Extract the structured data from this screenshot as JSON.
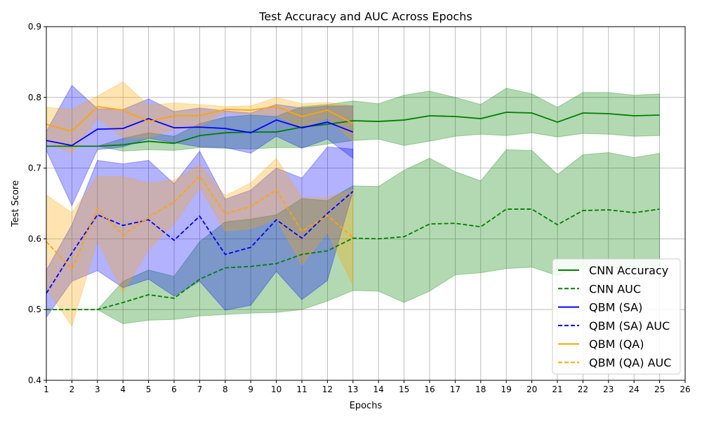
{
  "chart_data": {
    "type": "line",
    "title": "Test Accuracy and AUC Across Epochs",
    "xlabel": "Epochs",
    "ylabel": "Test Score",
    "xlim": [
      1,
      26
    ],
    "ylim": [
      0.4,
      0.9
    ],
    "xticks": [
      1,
      2,
      3,
      4,
      5,
      6,
      7,
      8,
      9,
      10,
      11,
      12,
      13,
      14,
      15,
      16,
      17,
      18,
      19,
      20,
      21,
      22,
      23,
      24,
      25,
      26
    ],
    "yticks": [
      0.4,
      0.5,
      0.6,
      0.7,
      0.8,
      0.9
    ],
    "ytick_labels": [
      "0.4",
      "0.5",
      "0.6",
      "0.7",
      "0.8",
      "0.9"
    ],
    "grid": true,
    "legend_position": "lower-right",
    "series": [
      {
        "name": "CNN Accuracy",
        "color": "#008000",
        "dash": false,
        "x": [
          1,
          2,
          3,
          4,
          5,
          6,
          7,
          8,
          9,
          10,
          11,
          12,
          13,
          14,
          15,
          16,
          17,
          18,
          19,
          20,
          21,
          22,
          23,
          24,
          25
        ],
        "values": [
          0.731,
          0.731,
          0.731,
          0.733,
          0.738,
          0.735,
          0.746,
          0.75,
          0.751,
          0.751,
          0.758,
          0.762,
          0.767,
          0.766,
          0.768,
          0.774,
          0.773,
          0.77,
          0.779,
          0.778,
          0.765,
          0.778,
          0.777,
          0.774,
          0.775
        ],
        "band_low": [
          0.731,
          0.731,
          0.731,
          0.724,
          0.726,
          0.725,
          0.729,
          0.728,
          0.727,
          0.729,
          0.729,
          0.734,
          0.739,
          0.741,
          0.732,
          0.738,
          0.745,
          0.748,
          0.746,
          0.75,
          0.744,
          0.749,
          0.748,
          0.745,
          0.746
        ],
        "band_high": [
          0.731,
          0.731,
          0.731,
          0.742,
          0.75,
          0.745,
          0.763,
          0.772,
          0.775,
          0.773,
          0.787,
          0.79,
          0.795,
          0.791,
          0.803,
          0.809,
          0.8,
          0.79,
          0.813,
          0.805,
          0.786,
          0.807,
          0.807,
          0.803,
          0.805
        ]
      },
      {
        "name": "CNN AUC",
        "color": "#008000",
        "dash": true,
        "x": [
          1,
          2,
          3,
          4,
          5,
          6,
          7,
          8,
          9,
          10,
          11,
          12,
          13,
          14,
          15,
          16,
          17,
          18,
          19,
          20,
          21,
          22,
          23,
          24,
          25
        ],
        "values": [
          0.5,
          0.5,
          0.5,
          0.51,
          0.521,
          0.516,
          0.543,
          0.559,
          0.561,
          0.565,
          0.578,
          0.583,
          0.601,
          0.6,
          0.603,
          0.621,
          0.622,
          0.617,
          0.642,
          0.642,
          0.62,
          0.64,
          0.641,
          0.637,
          0.642
        ],
        "band_low": [
          0.5,
          0.5,
          0.5,
          0.48,
          0.485,
          0.486,
          0.491,
          0.493,
          0.495,
          0.496,
          0.5,
          0.512,
          0.527,
          0.526,
          0.51,
          0.526,
          0.549,
          0.552,
          0.558,
          0.56,
          0.548,
          0.561,
          0.56,
          0.558,
          0.562
        ],
        "band_high": [
          0.5,
          0.5,
          0.5,
          0.54,
          0.556,
          0.547,
          0.596,
          0.624,
          0.628,
          0.634,
          0.657,
          0.654,
          0.675,
          0.674,
          0.697,
          0.714,
          0.695,
          0.682,
          0.726,
          0.725,
          0.691,
          0.719,
          0.722,
          0.715,
          0.721
        ]
      },
      {
        "name": "QBM (SA)",
        "color": "#0000ff",
        "dash": false,
        "x": [
          1,
          2,
          3,
          4,
          5,
          6,
          7,
          8,
          9,
          10,
          11,
          12,
          13
        ],
        "values": [
          0.739,
          0.732,
          0.755,
          0.756,
          0.77,
          0.757,
          0.758,
          0.756,
          0.75,
          0.768,
          0.757,
          0.765,
          0.751
        ],
        "band_low": [
          0.725,
          0.647,
          0.726,
          0.73,
          0.742,
          0.736,
          0.73,
          0.729,
          0.721,
          0.745,
          0.728,
          0.741,
          0.714
        ],
        "band_high": [
          0.752,
          0.817,
          0.784,
          0.783,
          0.798,
          0.78,
          0.785,
          0.781,
          0.778,
          0.79,
          0.785,
          0.788,
          0.788
        ]
      },
      {
        "name": "QBM (SA) AUC",
        "color": "#0000ff",
        "dash": true,
        "x": [
          1,
          2,
          3,
          4,
          5,
          6,
          7,
          8,
          9,
          10,
          11,
          12,
          13
        ],
        "values": [
          0.523,
          0.58,
          0.634,
          0.619,
          0.627,
          0.598,
          0.632,
          0.578,
          0.588,
          0.627,
          0.601,
          0.636,
          0.667
        ],
        "band_low": [
          0.489,
          0.54,
          0.555,
          0.531,
          0.543,
          0.519,
          0.54,
          0.499,
          0.506,
          0.554,
          0.514,
          0.541,
          0.667
        ],
        "band_high": [
          0.556,
          0.62,
          0.711,
          0.706,
          0.711,
          0.678,
          0.724,
          0.656,
          0.669,
          0.7,
          0.686,
          0.73,
          0.727
        ]
      },
      {
        "name": "QBM (QA)",
        "color": "#ffa500",
        "dash": false,
        "x": [
          1,
          2,
          3,
          4,
          5,
          6,
          7,
          8,
          9,
          10,
          11,
          12,
          13
        ],
        "values": [
          0.762,
          0.752,
          0.787,
          0.782,
          0.766,
          0.774,
          0.774,
          0.783,
          0.782,
          0.787,
          0.773,
          0.782,
          0.763
        ],
        "band_low": [
          0.738,
          0.721,
          0.771,
          0.743,
          0.743,
          0.755,
          0.758,
          0.779,
          0.776,
          0.774,
          0.756,
          0.771,
          0.738
        ],
        "band_high": [
          0.786,
          0.783,
          0.802,
          0.822,
          0.789,
          0.792,
          0.79,
          0.787,
          0.788,
          0.8,
          0.791,
          0.793,
          0.788
        ]
      },
      {
        "name": "QBM (QA) AUC",
        "color": "#ffa500",
        "dash": true,
        "x": [
          1,
          2,
          3,
          4,
          5,
          6,
          7,
          8,
          9,
          10,
          11,
          12,
          13
        ],
        "values": [
          0.596,
          0.557,
          0.643,
          0.605,
          0.631,
          0.652,
          0.689,
          0.635,
          0.646,
          0.669,
          0.611,
          0.633,
          0.602
        ],
        "band_low": [
          0.53,
          0.476,
          0.598,
          0.524,
          0.585,
          0.621,
          0.673,
          0.611,
          0.614,
          0.628,
          0.563,
          0.609,
          0.534
        ],
        "band_high": [
          0.662,
          0.637,
          0.688,
          0.688,
          0.679,
          0.683,
          0.705,
          0.661,
          0.679,
          0.714,
          0.658,
          0.658,
          0.67
        ]
      }
    ]
  }
}
